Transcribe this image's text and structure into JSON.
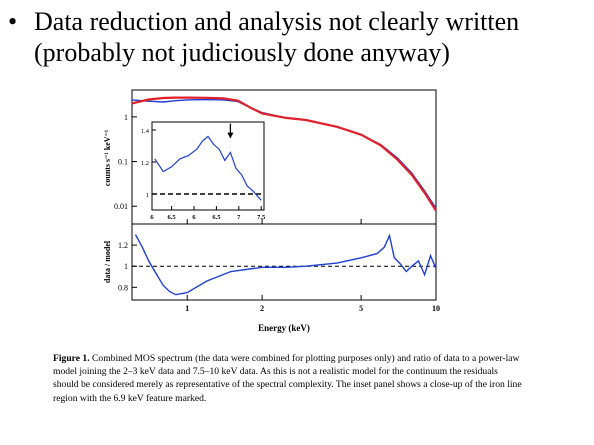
{
  "slide": {
    "bullet_symbol": "•",
    "bullet_line1": "Data reduction and analysis not clearly written",
    "bullet_line2": "(probably not judiciously done anyway)"
  },
  "chart_data": [
    {
      "type": "line",
      "panel": "spectrum",
      "ylabel": "counts s⁻¹ keV⁻¹",
      "xscale": "log",
      "yscale": "log",
      "xlim": [
        0.6,
        10
      ],
      "ylim": [
        0.004,
        4
      ],
      "y_ticks": [
        "1",
        "0.1",
        "0.01"
      ],
      "series": [
        {
          "style": "data",
          "color": "#1f3fd0",
          "x": [
            0.6,
            0.7,
            0.8,
            0.9,
            1.0,
            1.2,
            1.4,
            1.6,
            1.8,
            2.0,
            2.5,
            3.0,
            4.0,
            5.0,
            6.0,
            7.0,
            8.0,
            9.0,
            10.0
          ],
          "y": [
            2.4,
            2.25,
            2.15,
            2.3,
            2.4,
            2.45,
            2.4,
            2.2,
            1.6,
            1.25,
            0.95,
            0.85,
            0.6,
            0.4,
            0.24,
            0.12,
            0.055,
            0.022,
            0.009
          ]
        },
        {
          "style": "model",
          "color": "#e0202a",
          "x": [
            0.6,
            0.7,
            0.8,
            0.9,
            1.0,
            1.2,
            1.4,
            1.6,
            1.8,
            2.0,
            2.5,
            3.0,
            4.0,
            5.0,
            6.0,
            7.0,
            8.0,
            9.0,
            10.0
          ],
          "y": [
            2.0,
            2.45,
            2.65,
            2.7,
            2.7,
            2.68,
            2.6,
            2.3,
            1.6,
            1.2,
            0.95,
            0.85,
            0.6,
            0.4,
            0.23,
            0.11,
            0.05,
            0.02,
            0.008
          ]
        }
      ]
    },
    {
      "type": "line",
      "panel": "inset",
      "xlim": [
        5.5,
        7.5
      ],
      "ylim": [
        0.9,
        1.45
      ],
      "x_ticks": [
        "6",
        "6.5",
        "6",
        "6.5",
        "7",
        "7.5"
      ],
      "y_ticks": [
        "1.4",
        "1.2",
        "1"
      ],
      "reference_line": 1.0,
      "arrow_at_x": 6.9,
      "series": [
        {
          "style": "data",
          "color": "#1f3fd0",
          "x": [
            5.55,
            5.7,
            5.85,
            6.0,
            6.15,
            6.3,
            6.4,
            6.5,
            6.6,
            6.7,
            6.8,
            6.9,
            7.0,
            7.1,
            7.2,
            7.3,
            7.45
          ],
          "y": [
            1.22,
            1.14,
            1.17,
            1.22,
            1.24,
            1.28,
            1.33,
            1.36,
            1.31,
            1.28,
            1.21,
            1.26,
            1.16,
            1.12,
            1.05,
            1.02,
            0.96
          ]
        }
      ]
    },
    {
      "type": "line",
      "panel": "ratio",
      "ylabel": "data / model",
      "xlabel": "Energy (keV)",
      "xscale": "log",
      "xlim": [
        0.6,
        10
      ],
      "ylim": [
        0.68,
        1.4
      ],
      "x_ticks": [
        "1",
        "2",
        "5",
        "10"
      ],
      "y_ticks": [
        "1.2",
        "1",
        "0.8"
      ],
      "reference_line": 1.0,
      "series": [
        {
          "style": "data",
          "color": "#1f3fd0",
          "x": [
            0.62,
            0.66,
            0.7,
            0.75,
            0.8,
            0.85,
            0.9,
            1.0,
            1.2,
            1.5,
            2.0,
            2.5,
            3.0,
            4.0,
            5.0,
            5.8,
            6.2,
            6.5,
            6.8,
            7.2,
            7.6,
            8.0,
            8.5,
            9.0,
            9.5,
            10.0
          ],
          "y": [
            1.3,
            1.18,
            1.05,
            0.93,
            0.82,
            0.76,
            0.73,
            0.75,
            0.86,
            0.95,
            0.99,
            0.99,
            1.0,
            1.03,
            1.08,
            1.12,
            1.18,
            1.29,
            1.08,
            1.02,
            0.95,
            1.0,
            1.05,
            0.92,
            1.1,
            0.98
          ]
        }
      ]
    }
  ],
  "caption": {
    "label": "Figure 1.",
    "text": " Combined MOS spectrum (the data were combined for plotting purposes only) and ratio of data to a power-law model joining the 2–3 keV data and 7.5–10 keV data.  As this is not a realistic model for the continuum the residuals should be considered merely as representative of the spectral complexity. The inset panel shows a close-up of the iron line region with the 6.9 keV feature marked."
  }
}
